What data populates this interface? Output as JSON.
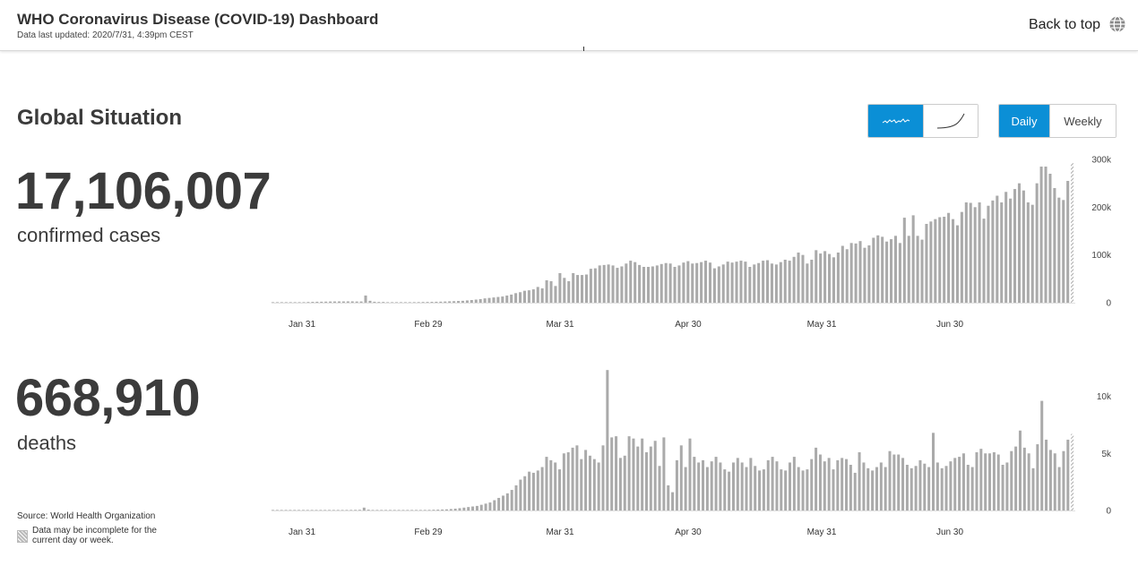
{
  "header": {
    "title": "WHO Coronavirus Disease (COVID-19) Dashboard",
    "updated": "Data last updated: 2020/7/31, 4:39pm CEST",
    "back_to_top": "Back to top",
    "globe_icon": "globe-icon"
  },
  "section": {
    "title": "Global Situation"
  },
  "controls": {
    "scale_options": [
      {
        "icon": "linear-trend-icon",
        "active": true
      },
      {
        "icon": "cumulative-curve-icon",
        "active": false
      }
    ],
    "period_options": [
      {
        "label": "Daily",
        "active": true
      },
      {
        "label": "Weekly",
        "active": false
      }
    ],
    "accent_color": "#0b8fd6"
  },
  "confirmed": {
    "number": "17,106,007",
    "label": "confirmed cases"
  },
  "deaths": {
    "number": "668,910",
    "label": "deaths"
  },
  "footer": {
    "source": "Source: World Health Organization",
    "note": "Data may be incomplete for the current day or week."
  },
  "chart_data": [
    {
      "type": "bar",
      "x_ticks": [
        "Jan 31",
        "Feb 29",
        "Mar 31",
        "Apr 30",
        "May 31",
        "Jun 30"
      ],
      "y_ticks": [
        "0",
        "100k",
        "200k",
        "300k"
      ],
      "ylim": [
        0,
        300000
      ],
      "bar_color": "#aaaaaa",
      "values": [
        100,
        100,
        200,
        300,
        500,
        700,
        900,
        1200,
        1500,
        1800,
        2000,
        2100,
        2300,
        2500,
        2600,
        2700,
        2700,
        2800,
        2800,
        2500,
        2600,
        15000,
        4000,
        2000,
        1500,
        1600,
        1000,
        500,
        900,
        600,
        800,
        1000,
        1200,
        1300,
        1500,
        1600,
        1800,
        2000,
        2200,
        2500,
        2900,
        3200,
        3600,
        4000,
        4800,
        5600,
        6500,
        7600,
        9000,
        10000,
        11000,
        12000,
        13000,
        15000,
        17000,
        20000,
        22000,
        25000,
        26000,
        28000,
        33000,
        30000,
        47000,
        45000,
        35000,
        62000,
        52000,
        45000,
        62000,
        58000,
        58000,
        59000,
        71000,
        72000,
        78000,
        79000,
        80000,
        78000,
        73000,
        76000,
        82000,
        88000,
        85000,
        79000,
        75000,
        75000,
        76000,
        78000,
        81000,
        83000,
        82000,
        75000,
        78000,
        84000,
        87000,
        82000,
        83000,
        85000,
        88000,
        84000,
        72000,
        76000,
        80000,
        86000,
        84000,
        86000,
        88000,
        86000,
        75000,
        80000,
        83000,
        88000,
        89000,
        82000,
        80000,
        85000,
        90000,
        88000,
        96000,
        105000,
        100000,
        82000,
        90000,
        110000,
        103000,
        108000,
        102000,
        95000,
        105000,
        119000,
        112000,
        125000,
        124000,
        129000,
        115000,
        120000,
        136000,
        141000,
        138000,
        128000,
        133000,
        140000,
        125000,
        178000,
        140000,
        183000,
        140000,
        132000,
        165000,
        170000,
        175000,
        179000,
        180000,
        188000,
        175000,
        162000,
        190000,
        210000,
        209000,
        200000,
        210000,
        176000,
        203000,
        214000,
        224000,
        210000,
        232000,
        218000,
        238000,
        250000,
        235000,
        210000,
        205000,
        250000,
        285000,
        285000,
        270000,
        240000,
        220000,
        215000,
        255000,
        292000
      ],
      "last_incomplete": true
    },
    {
      "type": "bar",
      "x_ticks": [
        "Jan 31",
        "Feb 29",
        "Mar 31",
        "Apr 30",
        "May 31",
        "Jun 30"
      ],
      "y_ticks": [
        "0",
        "5k",
        "10k"
      ],
      "ylim": [
        0,
        12000
      ],
      "bar_color": "#aaaaaa",
      "values": [
        5,
        5,
        8,
        10,
        12,
        15,
        18,
        20,
        22,
        25,
        25,
        30,
        32,
        35,
        38,
        40,
        45,
        48,
        50,
        55,
        60,
        250,
        70,
        40,
        30,
        28,
        25,
        25,
        25,
        30,
        28,
        32,
        35,
        40,
        45,
        50,
        55,
        65,
        75,
        85,
        100,
        130,
        160,
        200,
        250,
        300,
        350,
        400,
        500,
        600,
        700,
        900,
        1100,
        1300,
        1500,
        1800,
        2200,
        2700,
        3000,
        3400,
        3300,
        3500,
        3800,
        4700,
        4400,
        4200,
        3600,
        5000,
        5100,
        5500,
        5700,
        4500,
        5300,
        4800,
        4500,
        4200,
        5700,
        12300,
        6400,
        6500,
        4600,
        4800,
        6500,
        6300,
        5600,
        6300,
        5100,
        5600,
        6100,
        3900,
        6400,
        2200,
        1600,
        4400,
        5700,
        3800,
        6300,
        4700,
        4200,
        4400,
        3800,
        4300,
        4700,
        4200,
        3600,
        3400,
        4200,
        4600,
        4200,
        3800,
        4600,
        3900,
        3500,
        3600,
        4400,
        4700,
        4300,
        3600,
        3500,
        4200,
        4700,
        3800,
        3500,
        3600,
        4500,
        5500,
        4900,
        4300,
        4600,
        3600,
        4400,
        4600,
        4500,
        4000,
        3300,
        5100,
        4200,
        3700,
        3500,
        3800,
        4200,
        3800,
        5200,
        4900,
        4900,
        4600,
        4000,
        3700,
        3900,
        4400,
        4100,
        3800,
        6800,
        4200,
        3700,
        3900,
        4300,
        4600,
        4700,
        5000,
        4000,
        3800,
        5100,
        5400,
        5000,
        5000,
        5100,
        4900,
        4000,
        4200,
        5200,
        5600,
        7000,
        5500,
        5000,
        3700,
        5800,
        9600,
        6200,
        5300,
        5000,
        3800,
        5200,
        6200,
        6700
      ],
      "last_incomplete": true
    }
  ]
}
